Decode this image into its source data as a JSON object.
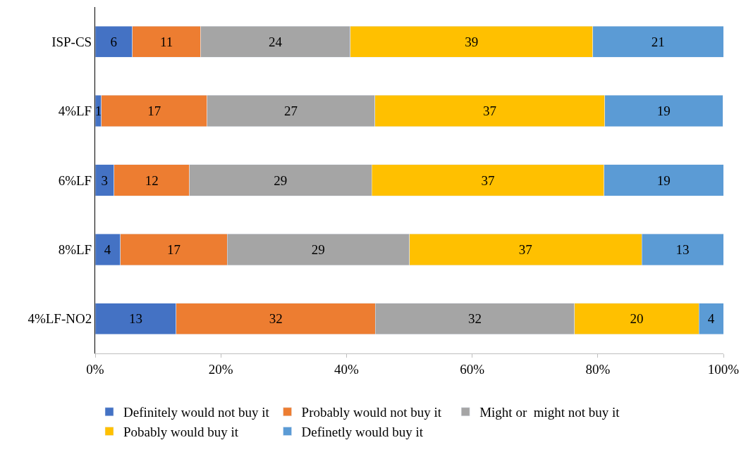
{
  "chart_data": {
    "type": "bar",
    "orientation": "horizontal",
    "stacked": true,
    "legend": "bottom",
    "categories": [
      "ISP-CS",
      "4%LF",
      "6%LF",
      "8%LF",
      "4%LF-NO2"
    ],
    "xlim": [
      0,
      100
    ],
    "xticks": [
      {
        "value": 0,
        "label": "0%"
      },
      {
        "value": 20,
        "label": "20%"
      },
      {
        "value": 40,
        "label": "40%"
      },
      {
        "value": 60,
        "label": "60%"
      },
      {
        "value": 80,
        "label": "80%"
      },
      {
        "value": 100,
        "label": "100%"
      }
    ],
    "series": [
      {
        "name": "Definitely would not buy it",
        "color": "#4472c4",
        "values": [
          5.9,
          1.0,
          3,
          4,
          12.9
        ],
        "value_labels": [
          "6",
          "1",
          "3",
          "4",
          "13"
        ]
      },
      {
        "name": "Probably would not buy it",
        "color": "#ed7d31",
        "values": [
          10.9,
          16.8,
          12,
          17,
          31.7
        ],
        "value_labels": [
          "11",
          "17",
          "12",
          "17",
          "32"
        ]
      },
      {
        "name": "Might or  might not buy it",
        "color": "#a5a5a5",
        "values": [
          23.8,
          26.7,
          29,
          29,
          31.7
        ],
        "value_labels": [
          "24",
          "27",
          "29",
          "29",
          "32"
        ]
      },
      {
        "name": "Pobably would buy it",
        "color": "#ffc000",
        "values": [
          38.6,
          36.6,
          37,
          37,
          19.8
        ],
        "value_labels": [
          "39",
          "37",
          "37",
          "37",
          "20"
        ]
      },
      {
        "name": "Definetly would buy it",
        "color": "#5b9bd5",
        "values": [
          20.8,
          18.8,
          19,
          13,
          3.9
        ],
        "value_labels": [
          "21",
          "19",
          "19",
          "13",
          "4"
        ]
      }
    ]
  }
}
